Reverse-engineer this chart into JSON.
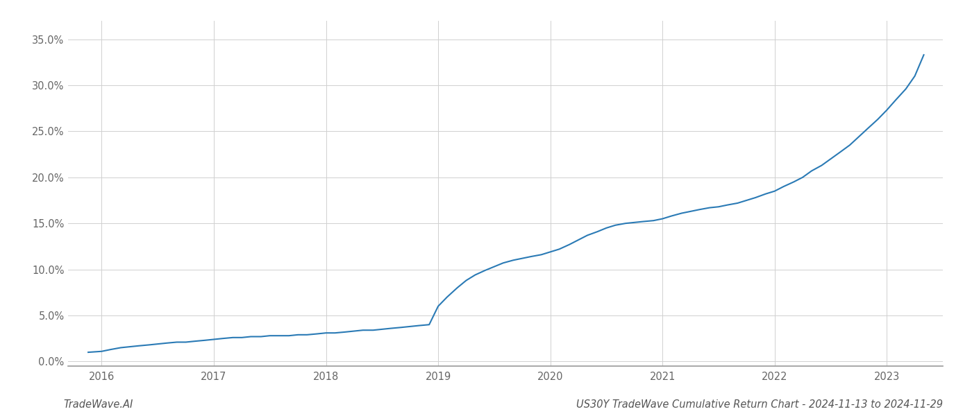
{
  "x_values": [
    2015.88,
    2016.0,
    2016.08,
    2016.17,
    2016.25,
    2016.33,
    2016.42,
    2016.5,
    2016.58,
    2016.67,
    2016.75,
    2016.83,
    2016.92,
    2017.0,
    2017.08,
    2017.17,
    2017.25,
    2017.33,
    2017.42,
    2017.5,
    2017.58,
    2017.67,
    2017.75,
    2017.83,
    2017.92,
    2018.0,
    2018.08,
    2018.17,
    2018.25,
    2018.33,
    2018.42,
    2018.5,
    2018.58,
    2018.67,
    2018.75,
    2018.83,
    2018.92,
    2019.0,
    2019.08,
    2019.17,
    2019.25,
    2019.33,
    2019.42,
    2019.5,
    2019.58,
    2019.67,
    2019.75,
    2019.83,
    2019.92,
    2020.0,
    2020.08,
    2020.17,
    2020.25,
    2020.33,
    2020.42,
    2020.5,
    2020.58,
    2020.67,
    2020.75,
    2020.83,
    2020.92,
    2021.0,
    2021.08,
    2021.17,
    2021.25,
    2021.33,
    2021.42,
    2021.5,
    2021.58,
    2021.67,
    2021.75,
    2021.83,
    2021.92,
    2022.0,
    2022.08,
    2022.17,
    2022.25,
    2022.33,
    2022.42,
    2022.5,
    2022.58,
    2022.67,
    2022.75,
    2022.83,
    2022.92,
    2023.0,
    2023.08,
    2023.17,
    2023.25,
    2023.33
  ],
  "y_values": [
    0.01,
    0.011,
    0.013,
    0.015,
    0.016,
    0.017,
    0.018,
    0.019,
    0.02,
    0.021,
    0.021,
    0.022,
    0.023,
    0.024,
    0.025,
    0.026,
    0.026,
    0.027,
    0.027,
    0.028,
    0.028,
    0.028,
    0.029,
    0.029,
    0.03,
    0.031,
    0.031,
    0.032,
    0.033,
    0.034,
    0.034,
    0.035,
    0.036,
    0.037,
    0.038,
    0.039,
    0.04,
    0.06,
    0.07,
    0.08,
    0.088,
    0.094,
    0.099,
    0.103,
    0.107,
    0.11,
    0.112,
    0.114,
    0.116,
    0.119,
    0.122,
    0.127,
    0.132,
    0.137,
    0.141,
    0.145,
    0.148,
    0.15,
    0.151,
    0.152,
    0.153,
    0.155,
    0.158,
    0.161,
    0.163,
    0.165,
    0.167,
    0.168,
    0.17,
    0.172,
    0.175,
    0.178,
    0.182,
    0.185,
    0.19,
    0.195,
    0.2,
    0.207,
    0.213,
    0.22,
    0.227,
    0.235,
    0.244,
    0.253,
    0.263,
    0.273,
    0.284,
    0.296,
    0.31,
    0.333
  ],
  "line_color": "#2a7ab5",
  "line_width": 1.5,
  "background_color": "#ffffff",
  "grid_color": "#d0d0d0",
  "xlim": [
    2015.7,
    2023.5
  ],
  "ylim": [
    -0.005,
    0.37
  ],
  "yticks": [
    0.0,
    0.05,
    0.1,
    0.15,
    0.2,
    0.25,
    0.3,
    0.35
  ],
  "xticks": [
    2016,
    2017,
    2018,
    2019,
    2020,
    2021,
    2022,
    2023
  ],
  "title_right": "US30Y TradeWave Cumulative Return Chart - 2024-11-13 to 2024-11-29",
  "title_left": "TradeWave.AI",
  "title_fontsize": 10.5,
  "tick_fontsize": 10.5,
  "fig_width": 14.0,
  "fig_height": 6.0
}
